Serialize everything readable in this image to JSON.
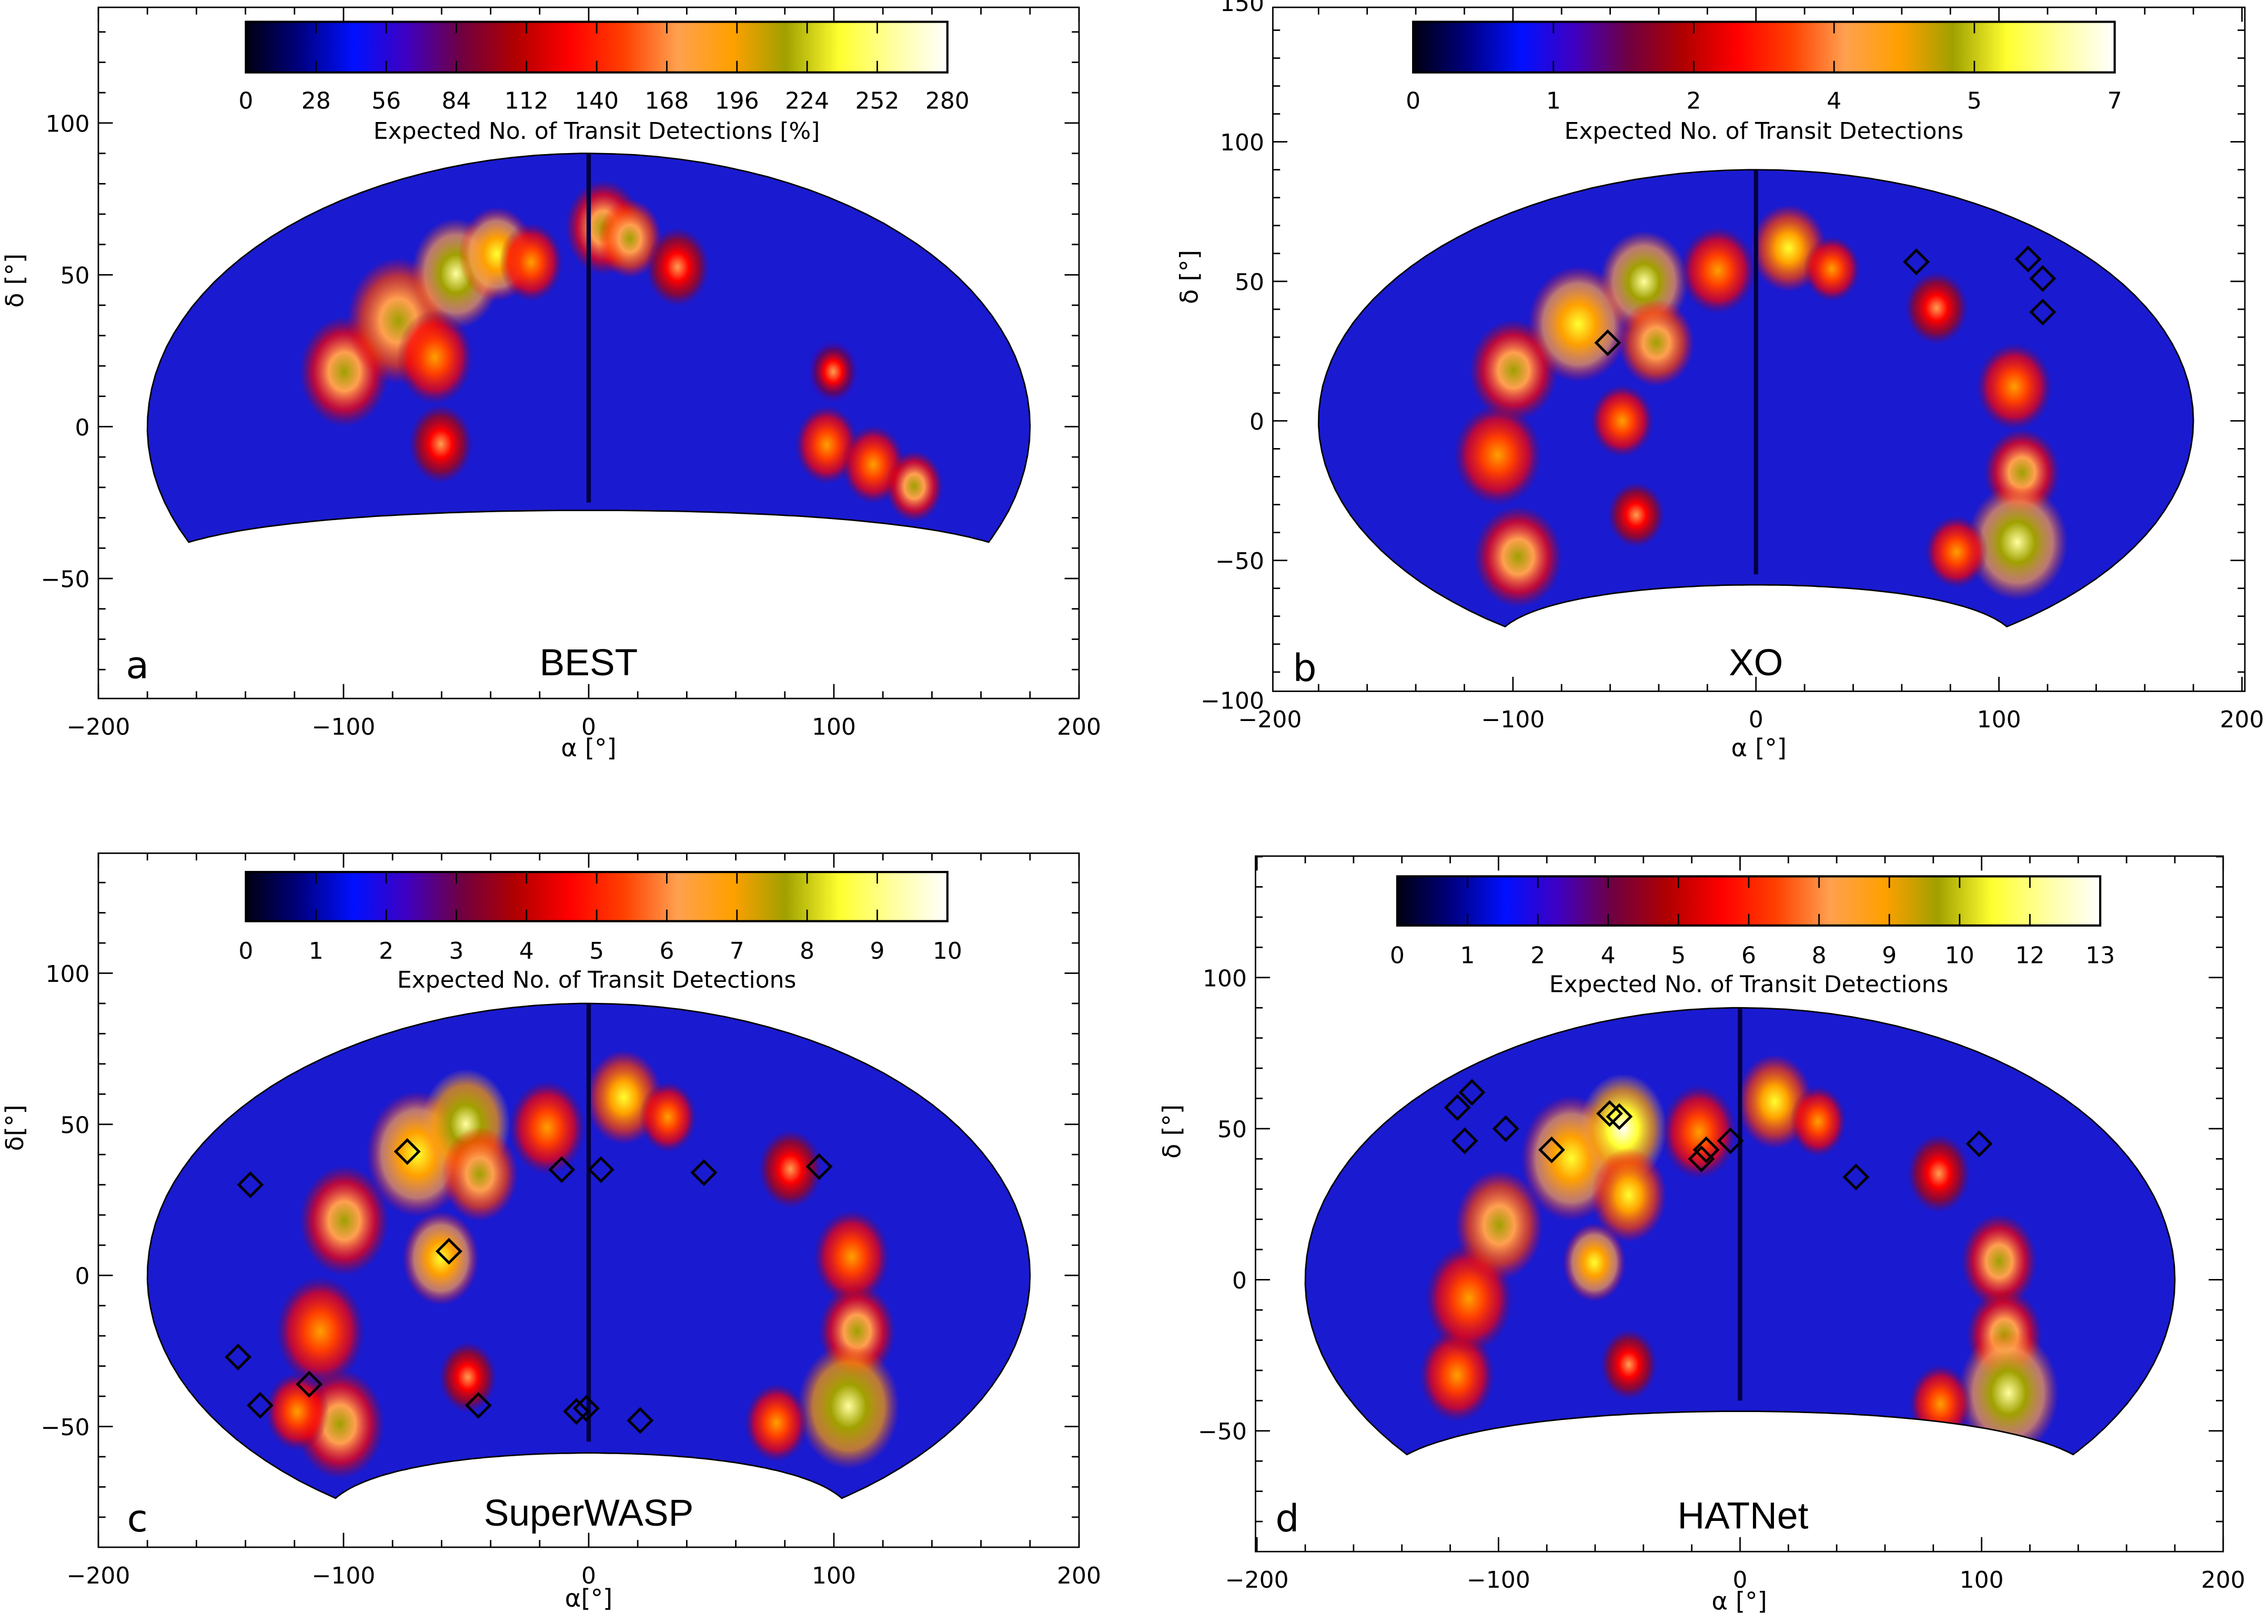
{
  "chart_data": [
    {
      "type": "heatmap",
      "panel_label": "a",
      "title": "BEST",
      "xlabel": "α [°]",
      "ylabel": "δ [°]",
      "xlim": [
        -200,
        200
      ],
      "ylim": [
        -90,
        138
      ],
      "xticks": [
        -200,
        -100,
        0,
        100,
        200
      ],
      "yticks": [
        -50,
        0,
        50,
        100
      ],
      "sky_coverage_dec_min": -25,
      "colorbar": {
        "label": "Expected No. of Transit Detections [%]",
        "ticks": [
          "0",
          "28",
          "56",
          "84",
          "112",
          "140",
          "168",
          "196",
          "224",
          "252",
          "280"
        ],
        "range": [
          0,
          280
        ]
      },
      "markers": []
    },
    {
      "type": "heatmap",
      "panel_label": "b",
      "title": "XO",
      "xlabel": "α [°]",
      "ylabel": "δ [°]",
      "xlim": [
        -200,
        200
      ],
      "ylim": [
        -100,
        150
      ],
      "xticks": [
        -200,
        -100,
        0,
        100,
        200
      ],
      "yticks": [
        -100,
        -50,
        0,
        50,
        100,
        150
      ],
      "sky_coverage_dec_min": -55,
      "colorbar": {
        "label": "Expected No. of Transit Detections",
        "ticks": [
          "0",
          "1",
          "2",
          "4",
          "5",
          "7"
        ],
        "range": [
          0,
          7
        ]
      },
      "markers": [
        [
          -61,
          28
        ],
        [
          66,
          57
        ],
        [
          112,
          58
        ],
        [
          118,
          51
        ],
        [
          118,
          39
        ]
      ]
    },
    {
      "type": "heatmap",
      "panel_label": "c",
      "title": "SuperWASP",
      "xlabel": "α[°]",
      "ylabel": "δ[°]",
      "xlim": [
        -200,
        200
      ],
      "ylim": [
        -90,
        138
      ],
      "xticks": [
        -200,
        -100,
        0,
        100,
        200
      ],
      "yticks": [
        -50,
        0,
        50,
        100
      ],
      "sky_coverage_dec_min": -55,
      "colorbar": {
        "label": "Expected No. of Transit Detections",
        "ticks": [
          "0",
          "1",
          "2",
          "3",
          "4",
          "5",
          "6",
          "7",
          "8",
          "9",
          "10"
        ],
        "range": [
          0,
          10
        ]
      },
      "markers": [
        [
          -138,
          30
        ],
        [
          -74,
          41
        ],
        [
          -57,
          8
        ],
        [
          -11,
          35
        ],
        [
          5,
          35
        ],
        [
          47,
          34
        ],
        [
          94,
          36
        ],
        [
          -143,
          -27
        ],
        [
          -134,
          -43
        ],
        [
          -114,
          -36
        ],
        [
          -45,
          -43
        ],
        [
          -5,
          -45
        ],
        [
          -1,
          -44
        ],
        [
          21,
          -48
        ]
      ]
    },
    {
      "type": "heatmap",
      "panel_label": "d",
      "title": "HATNet",
      "xlabel": "α [°]",
      "ylabel": "δ [°]",
      "xlim": [
        -200,
        200
      ],
      "ylim": [
        -90,
        138
      ],
      "xticks": [
        -200,
        -100,
        0,
        100,
        200
      ],
      "yticks": [
        -50,
        0,
        50,
        100
      ],
      "sky_coverage_dec_min": -40,
      "colorbar": {
        "label": "Expected No. of Transit Detections",
        "ticks": [
          "0",
          "1",
          "2",
          "4",
          "5",
          "6",
          "8",
          "9",
          "10",
          "12",
          "13"
        ],
        "range": [
          0,
          13
        ]
      },
      "markers": [
        [
          -117,
          57
        ],
        [
          -111,
          62
        ],
        [
          -114,
          46
        ],
        [
          -97,
          50
        ],
        [
          -78,
          43
        ],
        [
          -54,
          55
        ],
        [
          -50,
          54
        ],
        [
          -16,
          40
        ],
        [
          -14,
          43
        ],
        [
          -4,
          46
        ],
        [
          48,
          34
        ],
        [
          99,
          45
        ]
      ]
    }
  ],
  "colormap": [
    "#000010",
    "#000080",
    "#0010ff",
    "#4000c0",
    "#700040",
    "#b00000",
    "#ff0000",
    "#ff4000",
    "#ffa050",
    "#ffa000",
    "#a0a000",
    "#ffff30",
    "#ffffa0",
    "#ffffff"
  ],
  "map_base_color": "#1a1ad0",
  "marker_style": "diamond"
}
